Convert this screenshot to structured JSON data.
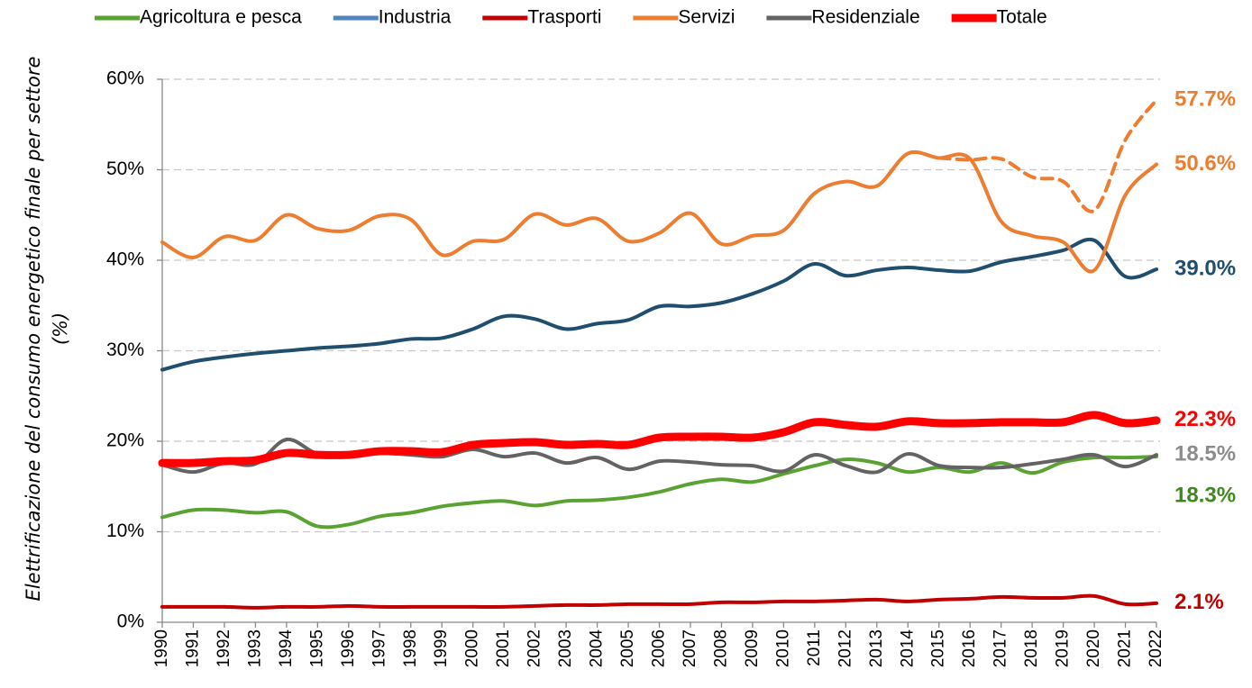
{
  "chart_data": {
    "type": "line",
    "y_label": "Elettrificazione del consumo energetico finale per settore (%)",
    "categories": [
      "1990",
      "1991",
      "1992",
      "1993",
      "1994",
      "1995",
      "1996",
      "1997",
      "1998",
      "1999",
      "2000",
      "2001",
      "2002",
      "2003",
      "2004",
      "2005",
      "2006",
      "2007",
      "2008",
      "2009",
      "2010",
      "2011",
      "2012",
      "2013",
      "2014",
      "2015",
      "2016",
      "2017",
      "2018",
      "2019",
      "2020",
      "2021",
      "2022"
    ],
    "ylim": [
      0,
      60
    ],
    "yticks": [
      {
        "value": 0,
        "label": "0%"
      },
      {
        "value": 10,
        "label": "10%"
      },
      {
        "value": 20,
        "label": "20%"
      },
      {
        "value": 30,
        "label": "30%"
      },
      {
        "value": 40,
        "label": "40%"
      },
      {
        "value": 50,
        "label": "50%"
      },
      {
        "value": 60,
        "label": "60%"
      }
    ],
    "grid": true,
    "legend": "top",
    "series": [
      {
        "name": "Agricoltura e pesca",
        "color": "#5aa333",
        "width": 4,
        "values": [
          11.6,
          12.4,
          12.4,
          12.1,
          12.2,
          10.6,
          10.8,
          11.7,
          12.1,
          12.8,
          13.2,
          13.4,
          12.9,
          13.4,
          13.5,
          13.8,
          14.4,
          15.3,
          15.8,
          15.5,
          16.4,
          17.3,
          18.0,
          17.6,
          16.6,
          17.1,
          16.6,
          17.6,
          16.5,
          17.7,
          18.2,
          18.2,
          18.3
        ],
        "value_labels": [
          null,
          null,
          null,
          null,
          null,
          null,
          null,
          null,
          null,
          null,
          null,
          null,
          null,
          null,
          null,
          null,
          null,
          null,
          null,
          null,
          null,
          null,
          null,
          null,
          null,
          null,
          null,
          null,
          null,
          null,
          null,
          null,
          "18.3%"
        ],
        "label_color": "#3f8a1f"
      },
      {
        "name": "Industria",
        "color": "#1f4e6e",
        "legend_color": "#4f86c0",
        "width": 4,
        "values": [
          27.9,
          28.8,
          29.3,
          29.7,
          30.0,
          30.3,
          30.5,
          30.8,
          31.3,
          31.4,
          32.4,
          33.8,
          33.5,
          32.4,
          33.0,
          33.4,
          34.9,
          34.9,
          35.3,
          36.3,
          37.7,
          39.6,
          38.3,
          38.9,
          39.2,
          38.9,
          38.8,
          39.8,
          40.4,
          41.1,
          42.2,
          38.2,
          39.0
        ],
        "value_labels": [
          null,
          null,
          null,
          null,
          null,
          null,
          null,
          null,
          null,
          null,
          null,
          null,
          null,
          null,
          null,
          null,
          null,
          null,
          null,
          null,
          null,
          null,
          null,
          null,
          null,
          null,
          null,
          null,
          null,
          null,
          null,
          null,
          "39.0%"
        ]
      },
      {
        "name": "Trasporti",
        "color": "#c00000",
        "width": 4,
        "values": [
          1.7,
          1.7,
          1.7,
          1.6,
          1.7,
          1.7,
          1.8,
          1.7,
          1.7,
          1.7,
          1.7,
          1.7,
          1.8,
          1.9,
          1.9,
          2.0,
          2.0,
          2.0,
          2.2,
          2.2,
          2.3,
          2.3,
          2.4,
          2.5,
          2.3,
          2.5,
          2.6,
          2.8,
          2.7,
          2.7,
          2.9,
          2.0,
          2.1
        ],
        "value_labels": [
          null,
          null,
          null,
          null,
          null,
          null,
          null,
          null,
          null,
          null,
          null,
          null,
          null,
          null,
          null,
          null,
          null,
          null,
          null,
          null,
          null,
          null,
          null,
          null,
          null,
          null,
          null,
          null,
          null,
          null,
          null,
          null,
          "2.1%"
        ]
      },
      {
        "name": "Servizi",
        "color": "#ed7d31",
        "width": 4,
        "values": [
          42.0,
          40.3,
          42.6,
          42.2,
          45.0,
          43.5,
          43.3,
          44.9,
          44.5,
          40.6,
          42.1,
          42.3,
          45.1,
          43.9,
          44.6,
          42.1,
          43.0,
          45.2,
          41.8,
          42.7,
          43.3,
          47.4,
          48.7,
          48.2,
          51.8,
          51.3,
          51.2,
          44.3,
          42.7,
          42.0,
          38.9,
          47.2,
          50.6
        ],
        "value_labels": [
          null,
          null,
          null,
          null,
          null,
          null,
          null,
          null,
          null,
          null,
          null,
          null,
          null,
          null,
          null,
          null,
          null,
          null,
          null,
          null,
          null,
          null,
          null,
          null,
          null,
          null,
          null,
          null,
          null,
          null,
          null,
          null,
          "50.6%"
        ]
      },
      {
        "color": "#ed7d31",
        "width": 4,
        "dashed": true,
        "values": [
          null,
          null,
          null,
          null,
          null,
          null,
          null,
          null,
          null,
          null,
          null,
          null,
          null,
          null,
          null,
          null,
          null,
          null,
          null,
          null,
          null,
          null,
          null,
          null,
          null,
          51.3,
          51.1,
          51.2,
          49.2,
          48.7,
          45.5,
          53.3,
          57.7
        ],
        "value_labels": [
          null,
          null,
          null,
          null,
          null,
          null,
          null,
          null,
          null,
          null,
          null,
          null,
          null,
          null,
          null,
          null,
          null,
          null,
          null,
          null,
          null,
          null,
          null,
          null,
          null,
          null,
          null,
          null,
          null,
          null,
          null,
          null,
          "57.7%"
        ]
      },
      {
        "name": "Residenziale",
        "color": "#636363",
        "label_color": "#8c8c8c",
        "width": 4,
        "values": [
          17.4,
          16.6,
          17.6,
          17.5,
          20.2,
          18.6,
          18.6,
          18.7,
          18.5,
          18.3,
          19.1,
          18.3,
          18.7,
          17.6,
          18.2,
          16.9,
          17.8,
          17.7,
          17.4,
          17.3,
          16.7,
          18.5,
          17.3,
          16.6,
          18.6,
          17.3,
          17.1,
          17.1,
          17.5,
          18.0,
          18.5,
          17.2,
          18.5
        ],
        "value_labels": [
          null,
          null,
          null,
          null,
          null,
          null,
          null,
          null,
          null,
          null,
          null,
          null,
          null,
          null,
          null,
          null,
          null,
          null,
          null,
          null,
          null,
          null,
          null,
          null,
          null,
          null,
          null,
          null,
          null,
          null,
          null,
          null,
          "18.5%"
        ]
      },
      {
        "name": "Totale",
        "color": "#ff0000",
        "width": 9,
        "values": [
          17.6,
          17.6,
          17.8,
          17.9,
          18.7,
          18.5,
          18.5,
          18.9,
          18.9,
          18.8,
          19.6,
          19.8,
          19.9,
          19.6,
          19.7,
          19.6,
          20.4,
          20.5,
          20.5,
          20.4,
          21.0,
          22.1,
          21.8,
          21.6,
          22.2,
          22.0,
          22.0,
          22.1,
          22.1,
          22.1,
          22.9,
          22.0,
          22.3
        ],
        "value_labels": [
          null,
          null,
          null,
          null,
          null,
          null,
          null,
          null,
          null,
          null,
          null,
          null,
          null,
          null,
          null,
          null,
          null,
          null,
          null,
          null,
          null,
          null,
          null,
          null,
          null,
          null,
          null,
          null,
          null,
          null,
          null,
          null,
          "22.3%"
        ]
      }
    ]
  }
}
